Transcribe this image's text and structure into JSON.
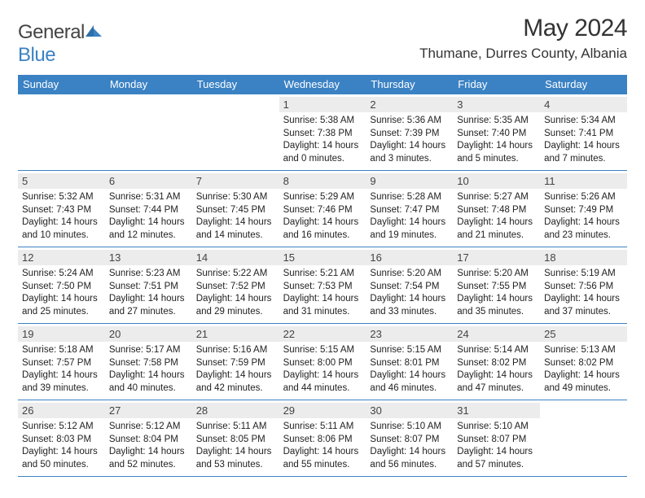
{
  "brand": {
    "part1": "General",
    "part2": "Blue"
  },
  "title": "May 2024",
  "location": "Thumane, Durres County, Albania",
  "colors": {
    "header_bg": "#3b82c4",
    "daynum_bg": "#ececec",
    "rule": "#3b82c4",
    "text": "#222222"
  },
  "day_names": [
    "Sunday",
    "Monday",
    "Tuesday",
    "Wednesday",
    "Thursday",
    "Friday",
    "Saturday"
  ],
  "weeks": [
    [
      {
        "n": "",
        "sr": "",
        "ss": "",
        "dl": ""
      },
      {
        "n": "",
        "sr": "",
        "ss": "",
        "dl": ""
      },
      {
        "n": "",
        "sr": "",
        "ss": "",
        "dl": ""
      },
      {
        "n": "1",
        "sr": "5:38 AM",
        "ss": "7:38 PM",
        "dl": "14 hours and 0 minutes."
      },
      {
        "n": "2",
        "sr": "5:36 AM",
        "ss": "7:39 PM",
        "dl": "14 hours and 3 minutes."
      },
      {
        "n": "3",
        "sr": "5:35 AM",
        "ss": "7:40 PM",
        "dl": "14 hours and 5 minutes."
      },
      {
        "n": "4",
        "sr": "5:34 AM",
        "ss": "7:41 PM",
        "dl": "14 hours and 7 minutes."
      }
    ],
    [
      {
        "n": "5",
        "sr": "5:32 AM",
        "ss": "7:43 PM",
        "dl": "14 hours and 10 minutes."
      },
      {
        "n": "6",
        "sr": "5:31 AM",
        "ss": "7:44 PM",
        "dl": "14 hours and 12 minutes."
      },
      {
        "n": "7",
        "sr": "5:30 AM",
        "ss": "7:45 PM",
        "dl": "14 hours and 14 minutes."
      },
      {
        "n": "8",
        "sr": "5:29 AM",
        "ss": "7:46 PM",
        "dl": "14 hours and 16 minutes."
      },
      {
        "n": "9",
        "sr": "5:28 AM",
        "ss": "7:47 PM",
        "dl": "14 hours and 19 minutes."
      },
      {
        "n": "10",
        "sr": "5:27 AM",
        "ss": "7:48 PM",
        "dl": "14 hours and 21 minutes."
      },
      {
        "n": "11",
        "sr": "5:26 AM",
        "ss": "7:49 PM",
        "dl": "14 hours and 23 minutes."
      }
    ],
    [
      {
        "n": "12",
        "sr": "5:24 AM",
        "ss": "7:50 PM",
        "dl": "14 hours and 25 minutes."
      },
      {
        "n": "13",
        "sr": "5:23 AM",
        "ss": "7:51 PM",
        "dl": "14 hours and 27 minutes."
      },
      {
        "n": "14",
        "sr": "5:22 AM",
        "ss": "7:52 PM",
        "dl": "14 hours and 29 minutes."
      },
      {
        "n": "15",
        "sr": "5:21 AM",
        "ss": "7:53 PM",
        "dl": "14 hours and 31 minutes."
      },
      {
        "n": "16",
        "sr": "5:20 AM",
        "ss": "7:54 PM",
        "dl": "14 hours and 33 minutes."
      },
      {
        "n": "17",
        "sr": "5:20 AM",
        "ss": "7:55 PM",
        "dl": "14 hours and 35 minutes."
      },
      {
        "n": "18",
        "sr": "5:19 AM",
        "ss": "7:56 PM",
        "dl": "14 hours and 37 minutes."
      }
    ],
    [
      {
        "n": "19",
        "sr": "5:18 AM",
        "ss": "7:57 PM",
        "dl": "14 hours and 39 minutes."
      },
      {
        "n": "20",
        "sr": "5:17 AM",
        "ss": "7:58 PM",
        "dl": "14 hours and 40 minutes."
      },
      {
        "n": "21",
        "sr": "5:16 AM",
        "ss": "7:59 PM",
        "dl": "14 hours and 42 minutes."
      },
      {
        "n": "22",
        "sr": "5:15 AM",
        "ss": "8:00 PM",
        "dl": "14 hours and 44 minutes."
      },
      {
        "n": "23",
        "sr": "5:15 AM",
        "ss": "8:01 PM",
        "dl": "14 hours and 46 minutes."
      },
      {
        "n": "24",
        "sr": "5:14 AM",
        "ss": "8:02 PM",
        "dl": "14 hours and 47 minutes."
      },
      {
        "n": "25",
        "sr": "5:13 AM",
        "ss": "8:02 PM",
        "dl": "14 hours and 49 minutes."
      }
    ],
    [
      {
        "n": "26",
        "sr": "5:12 AM",
        "ss": "8:03 PM",
        "dl": "14 hours and 50 minutes."
      },
      {
        "n": "27",
        "sr": "5:12 AM",
        "ss": "8:04 PM",
        "dl": "14 hours and 52 minutes."
      },
      {
        "n": "28",
        "sr": "5:11 AM",
        "ss": "8:05 PM",
        "dl": "14 hours and 53 minutes."
      },
      {
        "n": "29",
        "sr": "5:11 AM",
        "ss": "8:06 PM",
        "dl": "14 hours and 55 minutes."
      },
      {
        "n": "30",
        "sr": "5:10 AM",
        "ss": "8:07 PM",
        "dl": "14 hours and 56 minutes."
      },
      {
        "n": "31",
        "sr": "5:10 AM",
        "ss": "8:07 PM",
        "dl": "14 hours and 57 minutes."
      },
      {
        "n": "",
        "sr": "",
        "ss": "",
        "dl": ""
      }
    ]
  ],
  "labels": {
    "sunrise": "Sunrise: ",
    "sunset": "Sunset: ",
    "daylight": "Daylight: "
  }
}
